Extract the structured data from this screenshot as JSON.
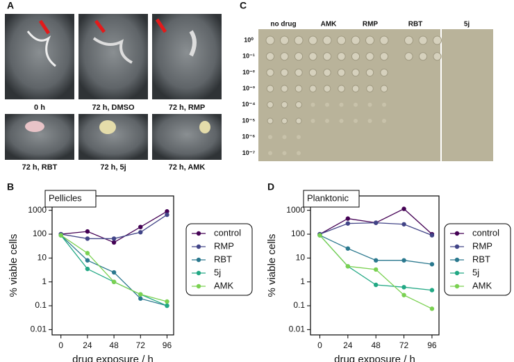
{
  "panel_labels": [
    "A",
    "B",
    "C",
    "D"
  ],
  "photos": [
    "0 h",
    "72 h, DMSO",
    "72 h, RMP",
    "72 h, RBT",
    "72 h, 5j",
    "72 h, AMK"
  ],
  "plate": {
    "columns": [
      "no drug",
      "AMK",
      "RMP",
      "RBT",
      "5j"
    ],
    "rows": [
      "10⁰",
      "10⁻¹",
      "10⁻²",
      "10⁻³",
      "10⁻⁴",
      "10⁻⁵",
      "10⁻⁶",
      "10⁻⁷"
    ]
  },
  "chart_data": [
    {
      "type": "line",
      "title": "Pellicles",
      "x_label": "drug exposure / h",
      "y_label": "% viable cells",
      "log_y": true,
      "x": [
        0,
        24,
        48,
        72,
        96
      ],
      "xlim": [
        -8,
        102
      ],
      "xticks": [
        0,
        24,
        48,
        72,
        96
      ],
      "ylim": [
        0.006,
        4000
      ],
      "yticks": [
        0.01,
        0.1,
        1,
        10,
        100,
        1000
      ],
      "legend": "right",
      "series": [
        {
          "name": "control",
          "color": "#440154",
          "values": [
            100,
            130,
            45,
            200,
            900
          ]
        },
        {
          "name": "RMP",
          "color": "#414487",
          "values": [
            100,
            65,
            65,
            120,
            650
          ]
        },
        {
          "name": "RBT",
          "color": "#2a788e",
          "values": [
            90,
            8,
            2.5,
            0.2,
            0.1
          ]
        },
        {
          "name": "5j",
          "color": "#22a884",
          "values": [
            90,
            3.5,
            1.0,
            0.3,
            0.1
          ]
        },
        {
          "name": "AMK",
          "color": "#7ad151",
          "values": [
            90,
            16,
            1.0,
            0.3,
            0.15
          ]
        }
      ]
    },
    {
      "type": "line",
      "title": "Planktonic",
      "x_label": "drug exposure / h",
      "y_label": "% viable cells",
      "log_y": true,
      "x": [
        0,
        24,
        48,
        72,
        96
      ],
      "xlim": [
        -8,
        102
      ],
      "xticks": [
        0,
        24,
        48,
        72,
        96
      ],
      "ylim": [
        0.006,
        4000
      ],
      "yticks": [
        0.01,
        0.1,
        1,
        10,
        100,
        1000
      ],
      "legend": "right",
      "series": [
        {
          "name": "control",
          "color": "#440154",
          "values": [
            100,
            450,
            300,
            1150,
            100
          ]
        },
        {
          "name": "RMP",
          "color": "#414487",
          "values": [
            100,
            280,
            300,
            260,
            90
          ]
        },
        {
          "name": "RBT",
          "color": "#2a788e",
          "values": [
            90,
            25,
            8,
            8,
            5.5
          ]
        },
        {
          "name": "5j",
          "color": "#22a884",
          "values": [
            90,
            4.5,
            0.75,
            0.6,
            0.45
          ]
        },
        {
          "name": "AMK",
          "color": "#7ad151",
          "values": [
            90,
            4.5,
            3.3,
            0.28,
            0.075
          ]
        }
      ]
    }
  ]
}
